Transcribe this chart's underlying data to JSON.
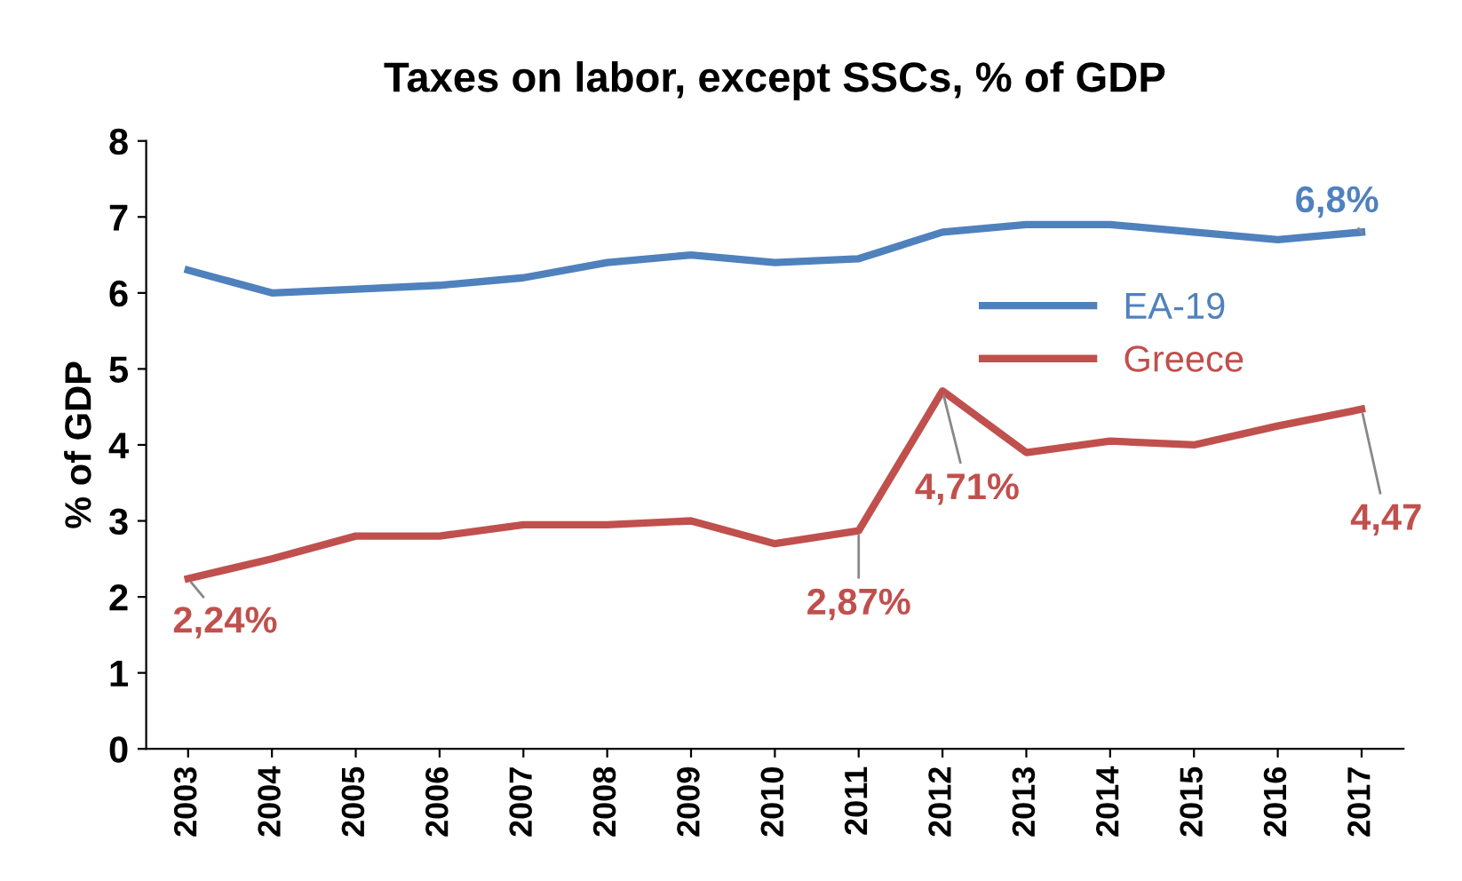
{
  "chart_data": {
    "type": "line",
    "title": "Taxes on labor, except SSCs, % of GDP",
    "ylabel": "% of GDP",
    "categories": [
      "2003",
      "2004",
      "2005",
      "2006",
      "2007",
      "2008",
      "2009",
      "2010",
      "2011",
      "2012",
      "2013",
      "2014",
      "2015",
      "2016",
      "2017"
    ],
    "series": [
      {
        "name": "EA-19",
        "color": "#4f81bd",
        "values": [
          6.3,
          6.0,
          6.05,
          6.1,
          6.2,
          6.4,
          6.5,
          6.4,
          6.45,
          6.8,
          6.9,
          6.9,
          6.8,
          6.7,
          6.8
        ]
      },
      {
        "name": "Greece",
        "color": "#c0504d",
        "values": [
          2.24,
          2.5,
          2.8,
          2.8,
          2.95,
          2.95,
          3.0,
          2.7,
          2.87,
          4.71,
          3.9,
          4.05,
          4.0,
          4.25,
          4.47
        ]
      }
    ],
    "annotations": [
      {
        "text": "6,8%",
        "x": "2017",
        "y": 6.8
      },
      {
        "text": "2,24%",
        "x": "2003",
        "y": 2.24
      },
      {
        "text": "2,87%",
        "x": "2011",
        "y": 2.87
      },
      {
        "text": "4,71%",
        "x": "2012",
        "y": 4.71
      },
      {
        "text": "4,47",
        "x": "2017",
        "y": 4.47
      }
    ],
    "ylim": [
      0,
      8
    ],
    "yticks": [
      0,
      1,
      2,
      3,
      4,
      5,
      6,
      7,
      8
    ],
    "grid": false,
    "legend": "right",
    "marker": "none",
    "line_style": "solid"
  }
}
